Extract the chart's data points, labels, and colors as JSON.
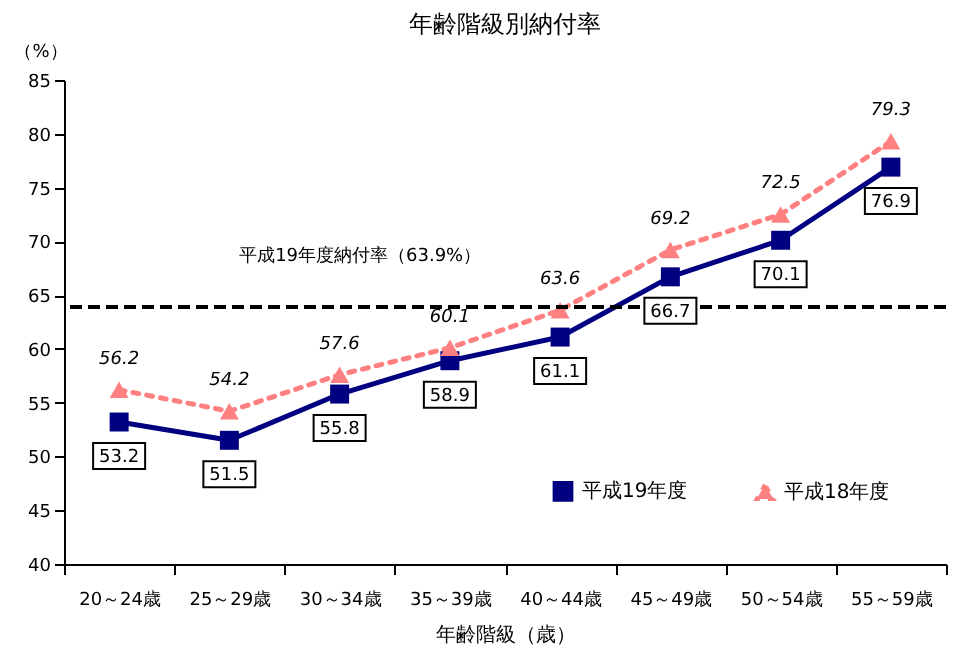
{
  "chart_data": {
    "type": "line",
    "title": "年齢階級別納付率",
    "xlabel": "年齢階級（歳）",
    "ylabel": "（%）",
    "categories": [
      "20～24歳",
      "25～29歳",
      "30～34歳",
      "35～39歳",
      "40～44歳",
      "45～49歳",
      "50～54歳",
      "55～59歳"
    ],
    "series": [
      {
        "name": "平成19年度",
        "color": "#000080",
        "marker": "square",
        "line_style": "solid",
        "values": [
          53.2,
          51.5,
          55.8,
          58.9,
          61.1,
          66.7,
          70.1,
          76.9
        ]
      },
      {
        "name": "平成18年度",
        "color": "#ff8080",
        "marker": "triangle",
        "line_style": "dotted",
        "values": [
          56.2,
          54.2,
          57.6,
          60.1,
          63.6,
          69.2,
          72.5,
          79.3
        ]
      }
    ],
    "ylim": [
      40,
      85
    ],
    "yticks": [
      40,
      45,
      50,
      55,
      60,
      65,
      70,
      75,
      80,
      85
    ],
    "ref_lines": [
      {
        "axis": "y",
        "value": 63.9,
        "label": "平成19年度納付率（63.9%）",
        "color": "#000000",
        "line_style": "dashed"
      }
    ],
    "data_labels": true,
    "legend": "bottom right",
    "grid": false
  }
}
